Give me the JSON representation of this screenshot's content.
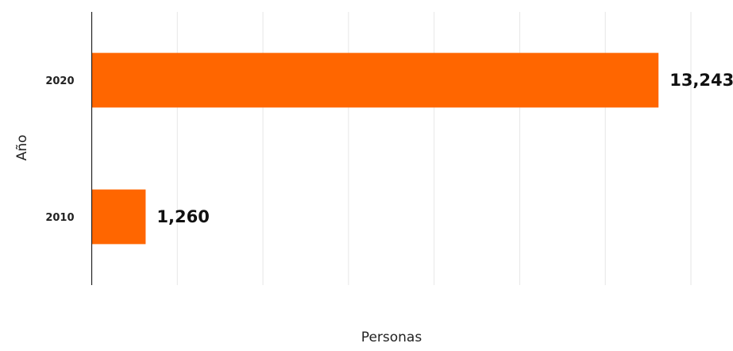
{
  "chart_data": {
    "type": "bar",
    "orientation": "horizontal",
    "categories": [
      "2020",
      "2010"
    ],
    "values": [
      13243,
      1260
    ],
    "data_labels": [
      "13,243",
      "1,260"
    ],
    "title": "",
    "xlabel": "Personas",
    "ylabel": "Año",
    "xlim": [
      0,
      14000
    ],
    "grid": true,
    "bar_color": "#ff6600",
    "grid_color": "#e6e6e6",
    "axis_color": "#222222"
  }
}
